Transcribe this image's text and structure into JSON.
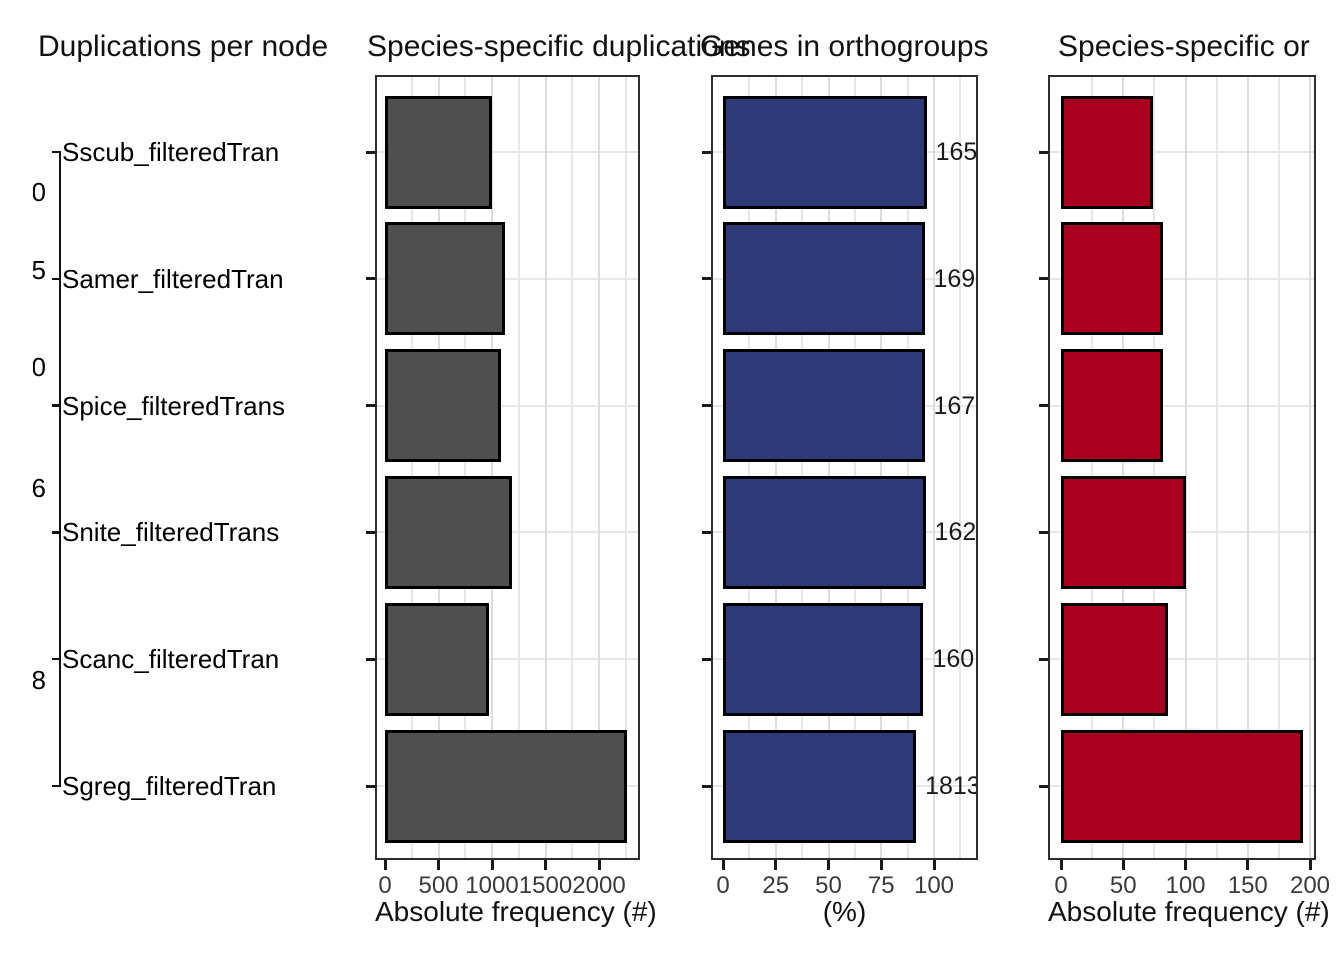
{
  "titles": [
    "Duplications per node",
    "Species-specific duplications",
    "Genes in orthogroups",
    "Species-specific or"
  ],
  "tree": {
    "species_labels": [
      "Sscub_filteredTran",
      "Samer_filteredTran",
      "Spice_filteredTrans",
      "Snite_filteredTrans",
      "Scanc_filteredTran",
      "Sgreg_filteredTran"
    ],
    "node_labels_partial": [
      "0",
      "5",
      "0",
      "6",
      "8"
    ]
  },
  "chart_data": [
    {
      "type": "bar",
      "title": "Species-specific duplications",
      "orientation": "horizontal",
      "categories": [
        "Sscub_filteredTran",
        "Samer_filteredTran",
        "Spice_filteredTrans",
        "Snite_filteredTrans",
        "Scanc_filteredTran",
        "Sgreg_filteredTran"
      ],
      "values": [
        1000,
        1120,
        1080,
        1190,
        970,
        2260
      ],
      "xlabel": "Absolute frequency (#)",
      "xticks": [
        0,
        500,
        1000,
        1500,
        2000
      ],
      "xlim": [
        0,
        2375
      ],
      "grid": true,
      "bar_color": "#4f4f4f",
      "bar_outline": "#000000"
    },
    {
      "type": "bar",
      "title": "Genes in orthogroups",
      "orientation": "horizontal",
      "categories": [
        "Sscub_filteredTran",
        "Samer_filteredTran",
        "Spice_filteredTrans",
        "Snite_filteredTrans",
        "Scanc_filteredTran",
        "Sgreg_filteredTran"
      ],
      "values": [
        96.5,
        95.5,
        95.5,
        96,
        95,
        91.5
      ],
      "bar_labels": [
        "165",
        "169",
        "167",
        "162",
        "160",
        "1813"
      ],
      "xlabel": "(%)",
      "xticks": [
        0,
        25,
        50,
        75,
        100
      ],
      "xlim": [
        0,
        121
      ],
      "grid": true,
      "bar_color": "#2d3a77",
      "bar_outline": "#000000"
    },
    {
      "type": "bar",
      "title": "Species-specific orthogroups",
      "orientation": "horizontal",
      "categories": [
        "Sscub_filteredTran",
        "Samer_filteredTran",
        "Spice_filteredTrans",
        "Snite_filteredTrans",
        "Scanc_filteredTran",
        "Sgreg_filteredTran"
      ],
      "values": [
        74,
        82,
        82,
        100,
        86,
        194
      ],
      "xlabel": "Absolute frequency (#)",
      "xticks": [
        0,
        50,
        100,
        150,
        200
      ],
      "xlim": [
        0,
        205
      ],
      "grid": true,
      "bar_color": "#a8001e",
      "bar_outline": "#000000"
    }
  ]
}
